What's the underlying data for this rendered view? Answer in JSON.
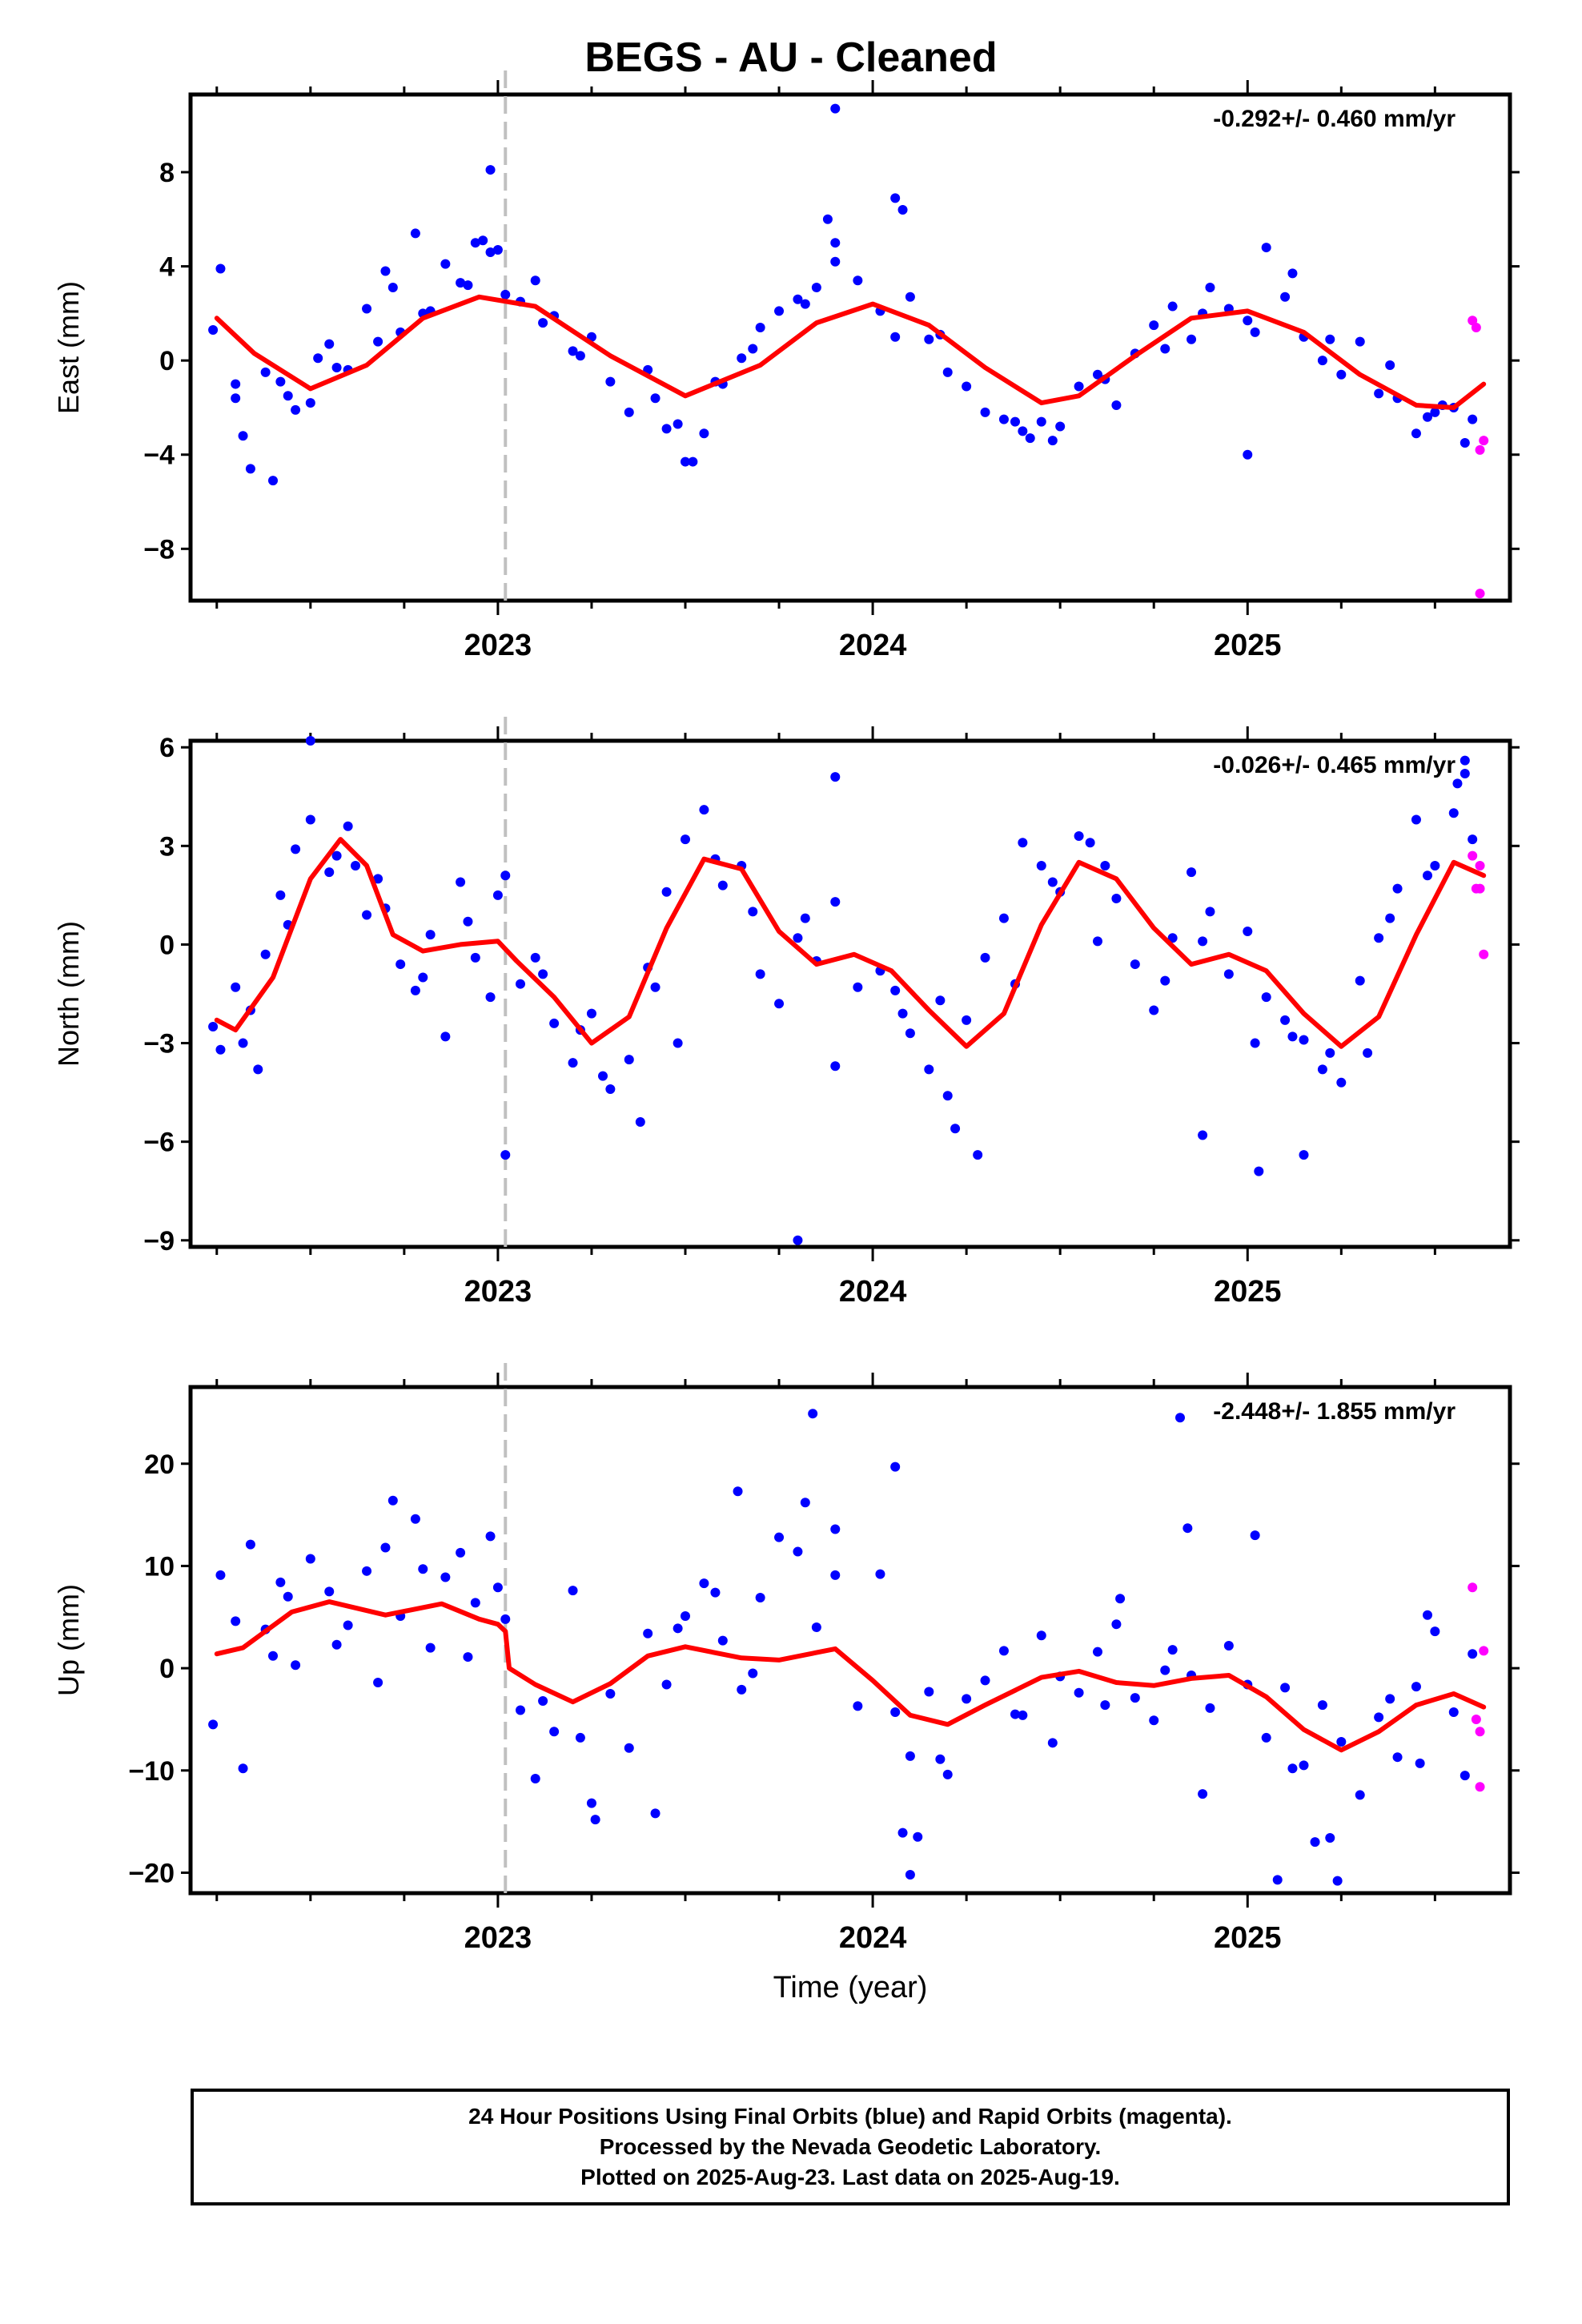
{
  "title": "BEGS  - AU - Cleaned",
  "colors": {
    "final_orbits": "#0000ff",
    "rapid_orbits": "#ff00ff",
    "model": "#ff0000",
    "event_line": "#c0c0c0",
    "frame": "#000000"
  },
  "footer": {
    "line1": "24 Hour Positions Using Final Orbits (blue) and Rapid Orbits (magenta).",
    "line2": "Processed by the Nevada Geodetic Laboratory.",
    "line3": "Plotted on 2025-Aug-23. Last data on 2025-Aug-19."
  },
  "chart_data": [
    {
      "type": "scatter",
      "panel": "east",
      "ylabel": "East (mm)",
      "xlabel": "",
      "rate_label": "-0.292+/- 0.460 mm/yr",
      "xlim": [
        2022.18,
        2025.7
      ],
      "ylim": [
        -10.2,
        11.3
      ],
      "yticks": [
        -8,
        -4,
        0,
        4,
        8
      ],
      "yticklabels": [
        "−8",
        "−4",
        "0",
        "4",
        "8"
      ],
      "xticks": [
        2023,
        2024,
        2025
      ],
      "xticklabels": [
        "2023",
        "2024",
        "2025"
      ],
      "minor_xticks": [
        2022.25,
        2022.5,
        2022.75,
        2023.25,
        2023.5,
        2023.75,
        2024.25,
        2024.5,
        2024.75,
        2025.25,
        2025.5
      ],
      "event_line_x": 2023.02,
      "grid": false,
      "fit": {
        "x": [
          2022.25,
          2022.35,
          2022.5,
          2022.65,
          2022.8,
          2022.95,
          2023.1,
          2023.3,
          2023.5,
          2023.7,
          2023.85,
          2024.0,
          2024.15,
          2024.3,
          2024.45,
          2024.55,
          2024.7,
          2024.85,
          2025.0,
          2025.15,
          2025.3,
          2025.45,
          2025.55,
          2025.63
        ],
        "y": [
          1.8,
          0.3,
          -1.2,
          -0.2,
          1.8,
          2.7,
          2.3,
          0.2,
          -1.5,
          -0.2,
          1.6,
          2.4,
          1.5,
          -0.3,
          -1.8,
          -1.5,
          0.2,
          1.8,
          2.1,
          1.2,
          -0.6,
          -1.9,
          -2.0,
          -1.0
        ]
      },
      "final_orbits": {
        "x": [
          2022.26,
          2022.3,
          2022.34,
          2022.38,
          2022.42,
          2022.46,
          2022.5,
          2022.55,
          2022.6,
          2022.65,
          2022.7,
          2022.74,
          2022.78,
          2022.82,
          2022.86,
          2022.9,
          2022.94,
          2022.98,
          2023.02,
          2023.06,
          2023.1,
          2023.15,
          2023.2,
          2023.25,
          2023.3,
          2023.35,
          2023.4,
          2023.45,
          2023.5,
          2023.55,
          2023.6,
          2023.65,
          2023.7,
          2023.75,
          2023.8,
          2023.85,
          2023.9,
          2023.96,
          2024.02,
          2024.06,
          2024.1,
          2024.15,
          2024.2,
          2024.25,
          2024.3,
          2024.35,
          2024.4,
          2024.45,
          2024.5,
          2024.55,
          2024.6,
          2024.65,
          2024.7,
          2024.75,
          2024.8,
          2024.85,
          2024.9,
          2024.95,
          2025.0,
          2025.05,
          2025.1,
          2025.15,
          2025.2,
          2025.25,
          2025.3,
          2025.35,
          2025.4,
          2025.45,
          2025.5,
          2025.55,
          2025.6,
          2022.24,
          2022.32,
          2022.44,
          2022.57,
          2022.68,
          2022.8,
          2022.92,
          2023.0,
          2023.12,
          2023.22,
          2023.42,
          2023.48,
          2023.58,
          2023.68,
          2023.82,
          2023.9,
          2024.08,
          2024.18,
          2024.38,
          2024.48,
          2024.62,
          2024.78,
          2024.88,
          2025.02,
          2025.12,
          2025.22,
          2025.38,
          2025.48,
          2025.58,
          2022.3,
          2022.52,
          2022.72,
          2022.96,
          2023.52,
          2023.88,
          2024.42,
          2025.52
        ],
        "y": [
          3.9,
          -1.0,
          -4.6,
          -0.5,
          -0.9,
          -2.1,
          -1.8,
          0.7,
          -0.4,
          2.2,
          3.8,
          1.2,
          5.4,
          2.1,
          4.1,
          3.3,
          5.0,
          4.6,
          2.8,
          2.5,
          3.4,
          1.9,
          0.4,
          1.0,
          -0.9,
          -2.2,
          -0.4,
          -2.9,
          -4.3,
          -3.1,
          -1.0,
          0.1,
          1.4,
          2.1,
          2.6,
          3.1,
          5.0,
          3.4,
          2.1,
          1.0,
          2.7,
          0.9,
          -0.5,
          -1.1,
          -2.2,
          -2.5,
          -3.0,
          -2.6,
          -2.8,
          -1.1,
          -0.6,
          -1.9,
          0.3,
          1.5,
          2.3,
          0.9,
          3.1,
          2.2,
          1.7,
          4.8,
          2.7,
          1.0,
          0.0,
          -0.6,
          0.8,
          -1.4,
          -1.6,
          -3.1,
          -2.2,
          -2.0,
          -2.5,
          1.3,
          -3.2,
          -1.5,
          -0.3,
          0.8,
          2.0,
          3.2,
          4.7,
          1.6,
          0.2,
          -1.6,
          -2.7,
          -0.9,
          0.5,
          2.4,
          4.2,
          6.4,
          1.1,
          -2.6,
          -3.4,
          -0.8,
          0.5,
          2.0,
          1.2,
          3.7,
          0.9,
          -0.2,
          -2.4,
          -3.5,
          -1.6,
          0.1,
          3.1,
          5.1,
          -4.3,
          6.0,
          -3.3,
          -1.9
        ],
        "outliers_x": [
          2022.4,
          2022.98,
          2023.9,
          2024.06,
          2025.0
        ],
        "outliers_y": [
          -5.1,
          8.1,
          10.7,
          6.9,
          -4.0
        ]
      },
      "rapid_orbits": {
        "x": [
          2025.6,
          2025.61,
          2025.62,
          2025.62,
          2025.63
        ],
        "y": [
          1.7,
          1.4,
          -3.8,
          -9.9,
          -3.4
        ]
      }
    },
    {
      "type": "scatter",
      "panel": "north",
      "ylabel": "North (mm)",
      "xlabel": "",
      "rate_label": "-0.026+/- 0.465 mm/yr",
      "xlim": [
        2022.18,
        2025.7
      ],
      "ylim": [
        -9.2,
        6.2
      ],
      "yticks": [
        -9,
        -6,
        -3,
        0,
        3,
        6
      ],
      "yticklabels": [
        "−9",
        "−6",
        "−3",
        "0",
        "3",
        "6"
      ],
      "xticks": [
        2023,
        2024,
        2025
      ],
      "xticklabels": [
        "2023",
        "2024",
        "2025"
      ],
      "minor_xticks": [
        2022.25,
        2022.5,
        2022.75,
        2023.25,
        2023.5,
        2023.75,
        2024.25,
        2024.5,
        2024.75,
        2025.25,
        2025.5
      ],
      "event_line_x": 2023.02,
      "grid": false,
      "fit": {
        "x": [
          2022.25,
          2022.3,
          2022.4,
          2022.5,
          2022.58,
          2022.65,
          2022.72,
          2022.8,
          2022.9,
          2023.0,
          2023.05,
          2023.15,
          2023.25,
          2023.35,
          2023.45,
          2023.55,
          2023.65,
          2023.75,
          2023.85,
          2023.95,
          2024.05,
          2024.15,
          2024.25,
          2024.35,
          2024.45,
          2024.55,
          2024.65,
          2024.75,
          2024.85,
          2024.95,
          2025.05,
          2025.15,
          2025.25,
          2025.35,
          2025.45,
          2025.55,
          2025.63
        ],
        "y": [
          -2.3,
          -2.6,
          -1.0,
          2.0,
          3.2,
          2.4,
          0.3,
          -0.2,
          0.0,
          0.1,
          -0.5,
          -1.6,
          -3.0,
          -2.2,
          0.5,
          2.6,
          2.3,
          0.4,
          -0.6,
          -0.3,
          -0.8,
          -2.0,
          -3.1,
          -2.1,
          0.6,
          2.5,
          2.0,
          0.5,
          -0.6,
          -0.3,
          -0.8,
          -2.1,
          -3.1,
          -2.2,
          0.3,
          2.5,
          2.1
        ]
      },
      "final_orbits": {
        "x": [
          2022.26,
          2022.3,
          2022.34,
          2022.38,
          2022.42,
          2022.46,
          2022.5,
          2022.55,
          2022.6,
          2022.65,
          2022.7,
          2022.74,
          2022.78,
          2022.82,
          2022.86,
          2022.9,
          2022.94,
          2022.98,
          2023.02,
          2023.06,
          2023.1,
          2023.15,
          2023.2,
          2023.25,
          2023.3,
          2023.35,
          2023.4,
          2023.45,
          2023.5,
          2023.55,
          2023.6,
          2023.65,
          2023.7,
          2023.75,
          2023.8,
          2023.85,
          2023.9,
          2023.96,
          2024.02,
          2024.06,
          2024.1,
          2024.15,
          2024.2,
          2024.25,
          2024.3,
          2024.35,
          2024.4,
          2024.45,
          2024.5,
          2024.55,
          2024.6,
          2024.65,
          2024.7,
          2024.75,
          2024.8,
          2024.85,
          2024.9,
          2024.95,
          2025.0,
          2025.05,
          2025.1,
          2025.15,
          2025.2,
          2025.25,
          2025.3,
          2025.35,
          2025.4,
          2025.45,
          2025.5,
          2025.55,
          2025.6,
          2022.24,
          2022.32,
          2022.44,
          2022.57,
          2022.68,
          2022.8,
          2022.92,
          2023.0,
          2023.12,
          2023.22,
          2023.42,
          2023.48,
          2023.58,
          2023.68,
          2023.82,
          2023.9,
          2024.08,
          2024.18,
          2024.38,
          2024.48,
          2024.62,
          2024.78,
          2024.88,
          2025.02,
          2025.12,
          2025.22,
          2025.38,
          2025.48,
          2025.58,
          2022.36,
          2022.62,
          2023.28,
          2023.38,
          2024.22,
          2024.58,
          2025.32,
          2025.56
        ],
        "y": [
          -3.2,
          -1.3,
          -2.0,
          -0.3,
          1.5,
          2.9,
          3.8,
          2.2,
          3.6,
          0.9,
          1.1,
          -0.6,
          -1.4,
          0.3,
          -2.8,
          1.9,
          -0.4,
          -1.6,
          2.1,
          -1.2,
          -0.4,
          -2.4,
          -3.6,
          -2.1,
          -4.4,
          -3.5,
          -0.7,
          1.6,
          3.2,
          4.1,
          1.8,
          2.4,
          -0.9,
          -1.8,
          0.2,
          -0.5,
          1.3,
          -1.3,
          -0.8,
          -1.4,
          -2.7,
          -3.8,
          -4.6,
          -2.3,
          -0.4,
          0.8,
          3.1,
          2.4,
          1.6,
          3.3,
          0.1,
          1.4,
          -0.6,
          -2.0,
          0.2,
          2.2,
          1.0,
          -0.9,
          0.4,
          -1.6,
          -2.3,
          -2.9,
          -3.8,
          -4.2,
          -1.1,
          0.2,
          1.7,
          3.8,
          2.4,
          4.0,
          3.2,
          -2.5,
          -3.0,
          0.6,
          2.7,
          2.0,
          -1.0,
          0.7,
          1.5,
          -0.9,
          -2.6,
          -1.3,
          -3.0,
          2.6,
          1.0,
          0.8,
          -3.7,
          -2.1,
          -1.7,
          -1.2,
          1.9,
          2.4,
          -1.1,
          0.1,
          -3.0,
          -2.8,
          -3.3,
          0.8,
          2.1,
          5.2,
          -3.8,
          2.4,
          -4.0,
          -5.4,
          -5.6,
          3.1,
          -3.3,
          4.9
        ],
        "outliers_x": [
          2022.5,
          2023.02,
          2023.8,
          2023.9,
          2024.28,
          2024.88,
          2025.03,
          2025.15,
          2025.58
        ],
        "outliers_y": [
          6.2,
          -6.4,
          -9.0,
          5.1,
          -6.4,
          -5.8,
          -6.9,
          -6.4,
          5.6
        ]
      },
      "rapid_orbits": {
        "x": [
          2025.6,
          2025.61,
          2025.62,
          2025.62,
          2025.63
        ],
        "y": [
          2.7,
          1.7,
          1.7,
          2.4,
          -0.3
        ]
      }
    },
    {
      "type": "scatter",
      "panel": "up",
      "ylabel": "Up (mm)",
      "xlabel": "Time (year)",
      "rate_label": "-2.448+/- 1.855 mm/yr",
      "xlim": [
        2022.18,
        2025.7
      ],
      "ylim": [
        -22,
        27.5
      ],
      "yticks": [
        -20,
        -10,
        0,
        10,
        20
      ],
      "yticklabels": [
        "−20",
        "−10",
        "0",
        "10",
        "20"
      ],
      "xticks": [
        2023,
        2024,
        2025
      ],
      "xticklabels": [
        "2023",
        "2024",
        "2025"
      ],
      "minor_xticks": [
        2022.25,
        2022.5,
        2022.75,
        2023.25,
        2023.5,
        2023.75,
        2024.25,
        2024.5,
        2024.75,
        2025.25,
        2025.5
      ],
      "event_line_x": 2023.02,
      "grid": false,
      "fit": {
        "x": [
          2022.25,
          2022.32,
          2022.45,
          2022.55,
          2022.7,
          2022.85,
          2022.95,
          2023.0,
          2023.02,
          2023.03,
          2023.1,
          2023.2,
          2023.3,
          2023.4,
          2023.5,
          2023.65,
          2023.75,
          2023.9,
          2024.0,
          2024.1,
          2024.2,
          2024.3,
          2024.45,
          2024.55,
          2024.65,
          2024.75,
          2024.85,
          2024.95,
          2025.05,
          2025.15,
          2025.25,
          2025.35,
          2025.45,
          2025.55,
          2025.63
        ],
        "y": [
          1.4,
          2.0,
          5.5,
          6.5,
          5.2,
          6.3,
          4.8,
          4.3,
          3.6,
          0.0,
          -1.6,
          -3.3,
          -1.5,
          1.2,
          2.1,
          1.0,
          0.8,
          1.9,
          -1.2,
          -4.6,
          -5.5,
          -3.6,
          -0.9,
          -0.3,
          -1.4,
          -1.7,
          -1.0,
          -0.7,
          -2.8,
          -6.0,
          -8.0,
          -6.2,
          -3.6,
          -2.5,
          -3.8
        ]
      },
      "final_orbits": {
        "x": [
          2022.26,
          2022.3,
          2022.34,
          2022.38,
          2022.42,
          2022.46,
          2022.5,
          2022.55,
          2022.6,
          2022.65,
          2022.7,
          2022.74,
          2022.78,
          2022.82,
          2022.86,
          2022.9,
          2022.94,
          2022.98,
          2023.02,
          2023.06,
          2023.1,
          2023.15,
          2023.2,
          2023.25,
          2023.3,
          2023.35,
          2023.4,
          2023.45,
          2023.5,
          2023.55,
          2023.6,
          2023.65,
          2023.7,
          2023.75,
          2023.8,
          2023.85,
          2023.9,
          2023.96,
          2024.02,
          2024.06,
          2024.1,
          2024.15,
          2024.2,
          2024.25,
          2024.3,
          2024.35,
          2024.4,
          2024.45,
          2024.5,
          2024.55,
          2024.6,
          2024.65,
          2024.7,
          2024.75,
          2024.8,
          2024.85,
          2024.9,
          2024.95,
          2025.0,
          2025.05,
          2025.1,
          2025.15,
          2025.2,
          2025.25,
          2025.3,
          2025.35,
          2025.4,
          2025.45,
          2025.5,
          2025.55,
          2025.6,
          2022.24,
          2022.32,
          2022.44,
          2022.57,
          2022.68,
          2022.8,
          2022.92,
          2023.0,
          2023.12,
          2023.22,
          2023.42,
          2023.48,
          2023.58,
          2023.68,
          2023.82,
          2023.9,
          2024.08,
          2024.18,
          2024.38,
          2024.48,
          2024.62,
          2024.78,
          2024.88,
          2025.02,
          2025.12,
          2025.22,
          2025.38,
          2025.48,
          2025.58,
          2022.4,
          2022.72,
          2023.26,
          2023.64,
          2024.12,
          2024.66,
          2025.18,
          2025.46
        ],
        "y": [
          9.1,
          4.6,
          12.1,
          3.8,
          8.4,
          0.3,
          10.7,
          7.5,
          4.2,
          9.5,
          11.8,
          5.1,
          14.6,
          2.0,
          8.9,
          11.3,
          6.4,
          12.9,
          4.8,
          -4.1,
          -10.8,
          -6.2,
          7.6,
          -13.2,
          -2.5,
          -7.8,
          3.4,
          -1.6,
          5.1,
          8.3,
          2.7,
          -2.1,
          6.9,
          12.8,
          11.4,
          4.0,
          13.6,
          -3.7,
          9.2,
          -4.3,
          -8.6,
          -2.3,
          -10.4,
          -3.0,
          -1.2,
          1.7,
          -4.6,
          3.2,
          -0.8,
          -2.4,
          1.6,
          4.3,
          -2.9,
          -5.1,
          1.8,
          -0.7,
          -3.9,
          2.2,
          -1.6,
          -6.8,
          -1.9,
          -9.5,
          -3.6,
          -7.2,
          -12.4,
          -4.8,
          -8.7,
          -1.8,
          3.6,
          -4.3,
          1.4,
          -5.5,
          -9.8,
          7.0,
          2.3,
          -1.4,
          9.7,
          1.1,
          7.9,
          -3.2,
          -6.8,
          -14.2,
          3.9,
          7.4,
          -0.5,
          16.2,
          9.1,
          -16.1,
          -8.9,
          -4.5,
          -7.3,
          -3.6,
          -0.2,
          -12.3,
          13.0,
          -9.8,
          -16.6,
          -3.0,
          5.2,
          -10.5,
          1.2,
          16.4,
          -14.8,
          17.3,
          -16.5,
          6.8,
          -17.0,
          -9.3
        ],
        "outliers_x": [
          2023.84,
          2024.06,
          2024.1,
          2024.82,
          2024.84,
          2025.08,
          2025.24
        ],
        "outliers_y": [
          24.9,
          19.7,
          -20.2,
          24.5,
          13.7,
          -20.7,
          -20.8
        ]
      },
      "rapid_orbits": {
        "x": [
          2025.6,
          2025.61,
          2025.62,
          2025.62,
          2025.63
        ],
        "y": [
          7.9,
          -5.0,
          -6.2,
          -11.6,
          1.7
        ]
      }
    }
  ]
}
